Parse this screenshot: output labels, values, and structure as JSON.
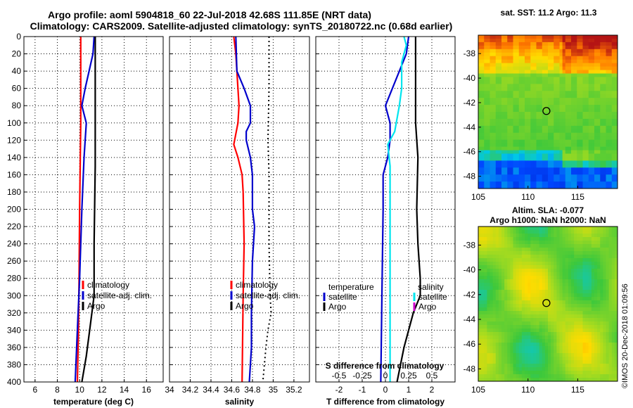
{
  "header": {
    "line1": "Argo profile: aoml 5904818_60 22-Jul-2018 42.68S 111.85E (NRT data)",
    "line2": "Climatology: CARS2009. Satellite-adjusted climatology: synTS_20180722.nc (0.68d earlier)"
  },
  "credit": "©IMOS 20-Dec-2018 01:09:56",
  "colors": {
    "red": "#ff0000",
    "blue": "#0000cc",
    "black": "#000000",
    "cyan": "#00e5ee",
    "magenta": "#cc00cc"
  },
  "chart_data": [
    {
      "id": "temperature",
      "type": "line",
      "xlabel": "temperature (deg C)",
      "ylabel": "",
      "xlim": [
        5,
        17.5
      ],
      "ylim": [
        400,
        0
      ],
      "xticks": [
        "6",
        "8",
        "10",
        "12",
        "14",
        "16"
      ],
      "xtick_values": [
        6,
        8,
        10,
        12,
        14,
        16
      ],
      "yticks": [
        "0",
        "20",
        "40",
        "60",
        "80",
        "100",
        "120",
        "140",
        "160",
        "180",
        "200",
        "220",
        "240",
        "260",
        "280",
        "300",
        "320",
        "340",
        "360",
        "380",
        "400"
      ],
      "ytick_values": [
        0,
        20,
        40,
        60,
        80,
        100,
        120,
        140,
        160,
        180,
        200,
        220,
        240,
        260,
        280,
        300,
        320,
        340,
        360,
        380,
        400
      ],
      "grid": true,
      "series": [
        {
          "name": "climatology",
          "color": "#ff0000",
          "style": "solid",
          "points": [
            [
              10.1,
              0
            ],
            [
              10.1,
              60
            ],
            [
              10.1,
              100
            ],
            [
              10.0,
              200
            ],
            [
              9.95,
              280
            ],
            [
              9.9,
              340
            ],
            [
              9.8,
              400
            ]
          ]
        },
        {
          "name": "satellite-adj. clim.",
          "color": "#0000cc",
          "style": "solid",
          "points": [
            [
              11.3,
              0
            ],
            [
              11.2,
              20
            ],
            [
              10.5,
              60
            ],
            [
              10.2,
              80
            ],
            [
              10.6,
              100
            ],
            [
              10.4,
              140
            ],
            [
              10.2,
              200
            ],
            [
              10.0,
              280
            ],
            [
              9.8,
              340
            ],
            [
              9.6,
              400
            ]
          ]
        },
        {
          "name": "Argo",
          "color": "#000000",
          "style": "solid",
          "points": [
            [
              11.4,
              0
            ],
            [
              11.4,
              40
            ],
            [
              11.4,
              100
            ],
            [
              11.4,
              150
            ],
            [
              11.3,
              240
            ],
            [
              11.3,
              300
            ],
            [
              11.2,
              310
            ],
            [
              10.9,
              340
            ],
            [
              10.6,
              370
            ],
            [
              10.2,
              400
            ]
          ]
        }
      ],
      "legend": [
        "climatology",
        "satellite-adj. clim.",
        "Argo"
      ],
      "legend_position": "lower-right"
    },
    {
      "id": "salinity",
      "type": "line",
      "xlabel": "salinity",
      "ylabel": "",
      "xlim": [
        34.0,
        35.35
      ],
      "ylim": [
        400,
        0
      ],
      "xticks": [
        "34",
        "34.2",
        "34.4",
        "34.6",
        "34.8",
        "35",
        "35.2"
      ],
      "xtick_values": [
        34.0,
        34.2,
        34.4,
        34.6,
        34.8,
        35.0,
        35.2
      ],
      "grid": true,
      "series": [
        {
          "name": "climatology",
          "color": "#ff0000",
          "style": "solid",
          "points": [
            [
              34.62,
              0
            ],
            [
              34.64,
              20
            ],
            [
              34.66,
              60
            ],
            [
              34.67,
              80
            ],
            [
              34.66,
              100
            ],
            [
              34.62,
              125
            ],
            [
              34.66,
              140
            ],
            [
              34.7,
              160
            ],
            [
              34.71,
              180
            ],
            [
              34.72,
              240
            ],
            [
              34.71,
              300
            ],
            [
              34.7,
              400
            ]
          ]
        },
        {
          "name": "satellite-adj. clim.",
          "color": "#0000cc",
          "style": "solid",
          "points": [
            [
              34.64,
              0
            ],
            [
              34.65,
              40
            ],
            [
              34.72,
              60
            ],
            [
              34.78,
              80
            ],
            [
              34.78,
              100
            ],
            [
              34.74,
              110
            ],
            [
              34.74,
              120
            ],
            [
              34.78,
              140
            ],
            [
              34.8,
              160
            ],
            [
              34.8,
              200
            ],
            [
              34.82,
              220
            ],
            [
              34.8,
              260
            ],
            [
              34.79,
              320
            ],
            [
              34.79,
              360
            ],
            [
              34.77,
              400
            ]
          ]
        },
        {
          "name": "Argo",
          "color": "#000000",
          "style": "dotted",
          "points": [
            [
              34.96,
              0
            ],
            [
              34.96,
              60
            ],
            [
              34.95,
              120
            ],
            [
              34.96,
              160
            ],
            [
              34.96,
              240
            ],
            [
              34.97,
              300
            ],
            [
              34.98,
              320
            ],
            [
              34.95,
              340
            ],
            [
              34.93,
              360
            ],
            [
              34.9,
              400
            ]
          ]
        }
      ],
      "legend": [
        "climatology",
        "satellite-adj. clim.",
        "Argo"
      ],
      "legend_position": "lower-right"
    },
    {
      "id": "difference",
      "type": "line",
      "xlabel": "T difference from climatology",
      "xlabel2": "S difference from climatology",
      "xlim": [
        -3,
        3.0
      ],
      "ylim": [
        400,
        0
      ],
      "xticks": [
        "-2",
        "-1",
        "0",
        "1",
        "2"
      ],
      "xtick_values": [
        -2,
        -1,
        0,
        1,
        2
      ],
      "xticks_s": [
        "-0.5",
        "-0.25",
        "0",
        "0.25",
        "0.5"
      ],
      "xticks_s_pos": [
        -2,
        -1,
        0,
        1,
        2
      ],
      "grid": true,
      "series": [
        {
          "name": "temperature satellite",
          "color": "#0000cc",
          "style": "solid",
          "points": [
            [
              1.0,
              0
            ],
            [
              0.9,
              20
            ],
            [
              0.6,
              40
            ],
            [
              0.3,
              60
            ],
            [
              0.0,
              80
            ],
            [
              0.2,
              100
            ],
            [
              0.2,
              120
            ],
            [
              0.1,
              140
            ],
            [
              -0.1,
              160
            ],
            [
              -0.1,
              200
            ],
            [
              -0.15,
              300
            ],
            [
              -0.2,
              400
            ]
          ]
        },
        {
          "name": "temperature Argo",
          "color": "#000000",
          "style": "solid",
          "points": [
            [
              1.3,
              0
            ],
            [
              1.3,
              40
            ],
            [
              1.3,
              100
            ],
            [
              1.4,
              140
            ],
            [
              1.35,
              200
            ],
            [
              1.4,
              240
            ],
            [
              1.5,
              280
            ],
            [
              1.5,
              300
            ],
            [
              1.2,
              320
            ],
            [
              1.0,
              340
            ],
            [
              0.8,
              360
            ],
            [
              0.5,
              400
            ]
          ]
        },
        {
          "name": "salinity satellite",
          "color": "#00e5ee",
          "style": "solid",
          "points": [
            [
              0.8,
              0
            ],
            [
              0.9,
              10
            ],
            [
              0.7,
              30
            ],
            [
              0.7,
              60
            ],
            [
              0.6,
              80
            ],
            [
              0.4,
              110
            ],
            [
              0.1,
              125
            ],
            [
              0.2,
              150
            ],
            [
              0.2,
              200
            ],
            [
              0.2,
              300
            ],
            [
              0.2,
              400
            ]
          ]
        }
      ],
      "legend_left_title": "temperature",
      "legend_right_title": "salinity",
      "legend_left": [
        "satellite",
        "Argo"
      ],
      "legend_right": [
        "satellite",
        "Argo"
      ]
    },
    {
      "id": "sst-map",
      "type": "heatmap",
      "title": "sat. SST: 11.2 Argo: 11.3",
      "xlim": [
        105,
        119
      ],
      "ylim": [
        -49,
        -36.5
      ],
      "xticks": [
        "105",
        "110",
        "115"
      ],
      "xtick_values": [
        105,
        110,
        115
      ],
      "yticks": [
        "-38",
        "-40",
        "-42",
        "-44",
        "-46",
        "-48"
      ],
      "ytick_values": [
        -38,
        -40,
        -42,
        -44,
        -46,
        -48
      ],
      "marker": {
        "lon": 111.85,
        "lat": -42.68
      }
    },
    {
      "id": "sla-map",
      "type": "heatmap",
      "title": "Altim. SLA: -0.077",
      "subtitle": "Argo h1000: NaN h2000: NaN",
      "xlim": [
        105,
        119
      ],
      "ylim": [
        -49,
        -36.5
      ],
      "xticks": [
        "105",
        "110",
        "115"
      ],
      "xtick_values": [
        105,
        110,
        115
      ],
      "yticks": [
        "-38",
        "-40",
        "-42",
        "-44",
        "-46",
        "-48"
      ],
      "ytick_values": [
        -38,
        -40,
        -42,
        -44,
        -46,
        -48
      ],
      "marker": {
        "lon": 111.85,
        "lat": -42.68
      }
    }
  ]
}
